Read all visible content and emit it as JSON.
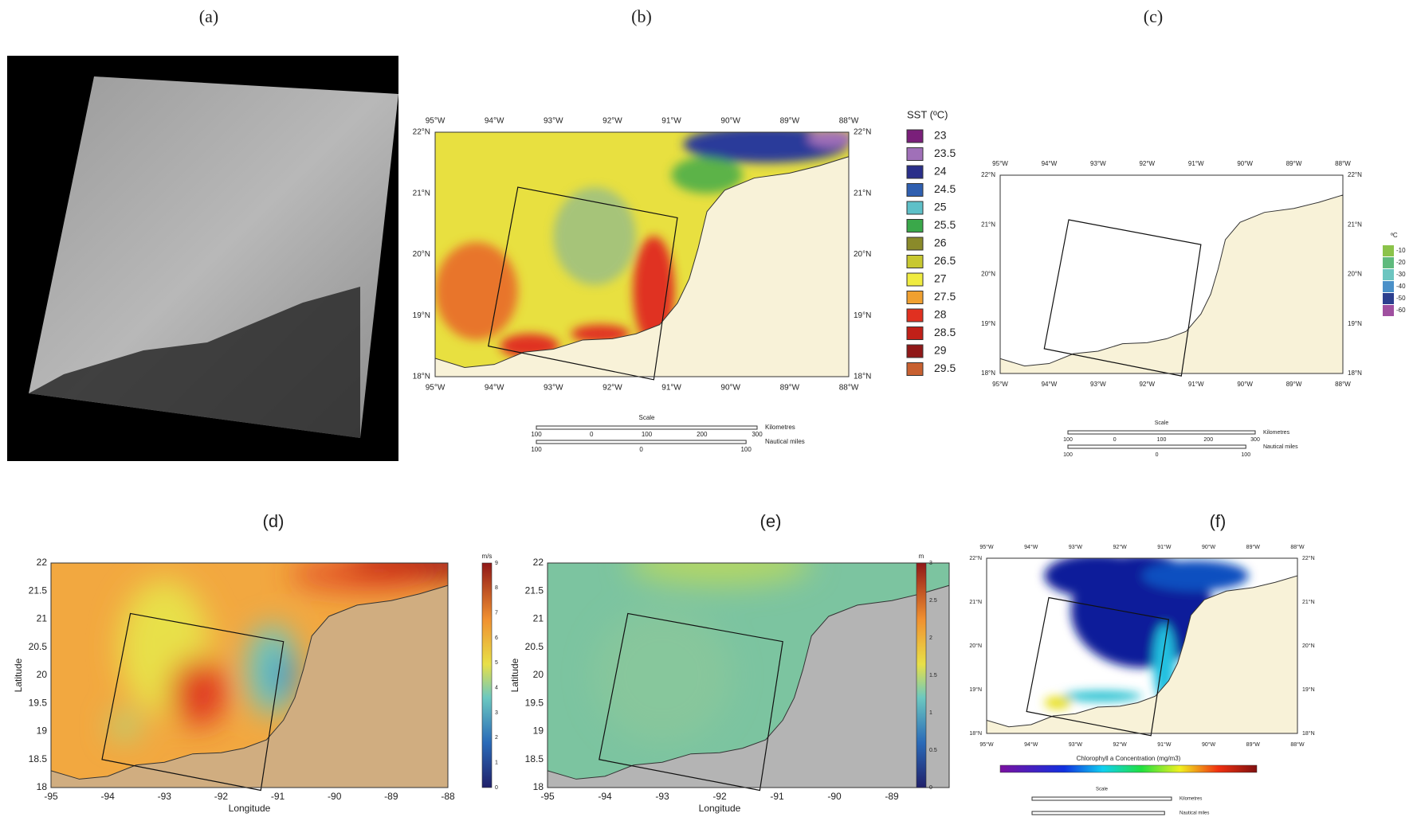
{
  "panels": {
    "a": {
      "label": "(a)"
    },
    "b": {
      "label": "(b)",
      "lon_ticks": [
        "95°W",
        "94°W",
        "93°W",
        "92°W",
        "91°W",
        "90°W",
        "89°W",
        "88°W"
      ],
      "lat_ticks": [
        "22°N",
        "21°N",
        "20°N",
        "19°N",
        "18°N"
      ],
      "legend_title": "SST (ºC)",
      "legend": [
        {
          "label": "23",
          "color": "#7a1f7a"
        },
        {
          "label": "23.5",
          "color": "#a070b8"
        },
        {
          "label": "24",
          "color": "#2a2f8a"
        },
        {
          "label": "24.5",
          "color": "#2f5fb0"
        },
        {
          "label": "25",
          "color": "#5ec0c8"
        },
        {
          "label": "25.5",
          "color": "#3aa84a"
        },
        {
          "label": "26",
          "color": "#8a8a2a"
        },
        {
          "label": "26.5",
          "color": "#c8c830"
        },
        {
          "label": "27",
          "color": "#f0ec40"
        },
        {
          "label": "27.5",
          "color": "#f0a030"
        },
        {
          "label": "28",
          "color": "#e03020"
        },
        {
          "label": "28.5",
          "color": "#c02018"
        },
        {
          "label": "29",
          "color": "#901818"
        },
        {
          "label": "29.5",
          "color": "#c86030"
        }
      ],
      "scale_title": "Scale",
      "km_label": "Kilometres",
      "nm_label": "Nautical miles",
      "km_ticks": [
        "100",
        "0",
        "100",
        "200",
        "300"
      ],
      "nm_ticks": [
        "100",
        "0",
        "100"
      ]
    },
    "c": {
      "label": "(c)",
      "lon_ticks": [
        "95°W",
        "94°W",
        "93°W",
        "92°W",
        "91°W",
        "90°W",
        "89°W",
        "88°W"
      ],
      "lat_ticks": [
        "22°N",
        "21°N",
        "20°N",
        "19°N",
        "18°N"
      ],
      "legend_title": "ºC",
      "legend": [
        {
          "label": "-10",
          "color": "#8bc34a"
        },
        {
          "label": "-20",
          "color": "#5fba7d"
        },
        {
          "label": "-30",
          "color": "#6cc5c0"
        },
        {
          "label": "-40",
          "color": "#4a90c8"
        },
        {
          "label": "-50",
          "color": "#2c3f8f"
        },
        {
          "label": "-60",
          "color": "#a050a0"
        }
      ],
      "scale_title": "Scale",
      "km_label": "Kilometres",
      "nm_label": "Nautical miles",
      "km_ticks": [
        "100",
        "0",
        "100",
        "200",
        "300"
      ],
      "nm_ticks": [
        "100",
        "0",
        "100"
      ]
    },
    "d": {
      "label": "(d)",
      "x_ticks": [
        "-95",
        "-94",
        "-93",
        "-92",
        "-91",
        "-90",
        "-89",
        "-88"
      ],
      "y_ticks": [
        "18",
        "18.5",
        "19",
        "19.5",
        "20",
        "20.5",
        "21",
        "21.5",
        "22"
      ],
      "x_label": "Longitude",
      "y_label": "Latitude",
      "cbar_unit": "m/s",
      "cbar_ticks": [
        "0",
        "1",
        "2",
        "3",
        "4",
        "5",
        "6",
        "7",
        "8",
        "9"
      ]
    },
    "e": {
      "label": "(e)",
      "x_ticks": [
        "-95",
        "-94",
        "-93",
        "-92",
        "-91",
        "-90",
        "-89"
      ],
      "y_ticks": [
        "18",
        "18.5",
        "19",
        "19.5",
        "20",
        "20.5",
        "21",
        "21.5",
        "22"
      ],
      "x_label": "Longitude",
      "y_label": "Latitude",
      "cbar_unit": "m",
      "cbar_ticks": [
        "0",
        "0.5",
        "1",
        "1.5",
        "2",
        "2.5",
        "3"
      ]
    },
    "f": {
      "label": "(f)",
      "lon_ticks": [
        "95°W",
        "94°W",
        "93°W",
        "92°W",
        "91°W",
        "90°W",
        "89°W",
        "88°W"
      ],
      "lat_ticks": [
        "22°N",
        "21°N",
        "20°N",
        "19°N",
        "18°N"
      ],
      "cbar_title": "Chlorophyll a Concentration (mg/m3)",
      "scale_title": "Scale",
      "km_label": "Kilometres",
      "nm_label": "Nautical miles"
    }
  }
}
